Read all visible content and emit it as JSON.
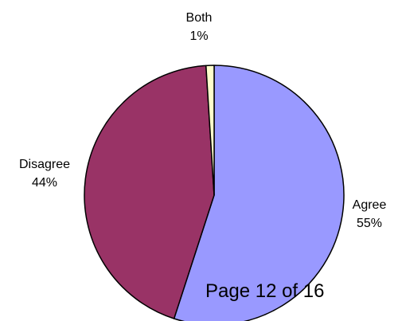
{
  "chart_data": {
    "type": "pie",
    "slices": [
      {
        "label": "Agree",
        "value": 55,
        "display": "55%",
        "color": "#9999ff"
      },
      {
        "label": "Disagree",
        "value": 44,
        "display": "44%",
        "color": "#993366"
      },
      {
        "label": "Both",
        "value": 1,
        "display": "1%",
        "color": "#ffffcc"
      }
    ],
    "start_angle": "12 o'clock",
    "direction": "clockwise",
    "legend": "none"
  },
  "page_indicator": "Page 12 of 16"
}
